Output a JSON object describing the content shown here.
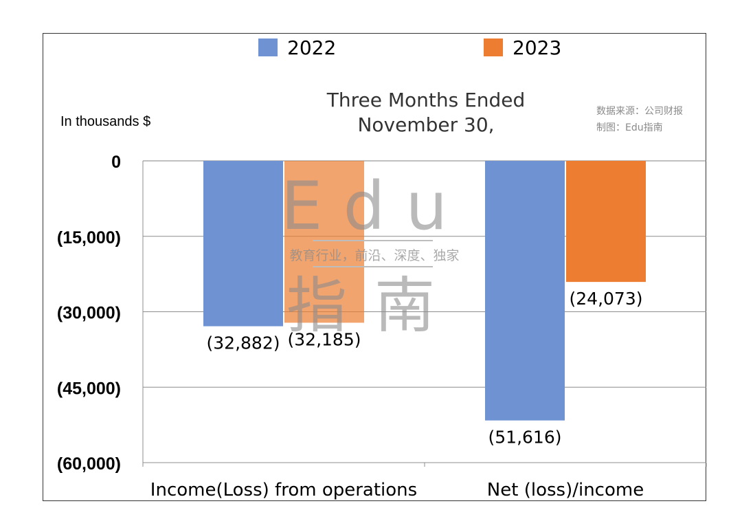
{
  "chart_data": {
    "type": "bar",
    "title": "",
    "subtitle": "Three Months Ended November 30,",
    "unit_label": "In thousands $",
    "source_note": [
      "数据来源：公司财报",
      "制图：Edu指南"
    ],
    "watermark": {
      "brand": "Edu",
      "tagline": "教育行业，前沿、深度、独家",
      "brand_cn": "指南"
    },
    "categories": [
      "Income(Loss) from operations",
      "Net (loss)/income"
    ],
    "series": [
      {
        "name": "2022",
        "color": "#6f93d2",
        "values": [
          -32882,
          -51616
        ],
        "labels": [
          "(32,882)",
          "(51,616)"
        ]
      },
      {
        "name": "2023",
        "color": "#ed7d31",
        "values": [
          -32185,
          -24073
        ],
        "labels": [
          "(32,185)",
          "(24,073)"
        ]
      }
    ],
    "ylim": [
      -60000,
      0
    ],
    "yticks": [
      0,
      -15000,
      -30000,
      -45000,
      -60000
    ],
    "ytick_labels": [
      "0",
      "(15,000)",
      "(30,000)",
      "(45,000)",
      "(60,000)"
    ],
    "grid": true,
    "legend": "top"
  }
}
